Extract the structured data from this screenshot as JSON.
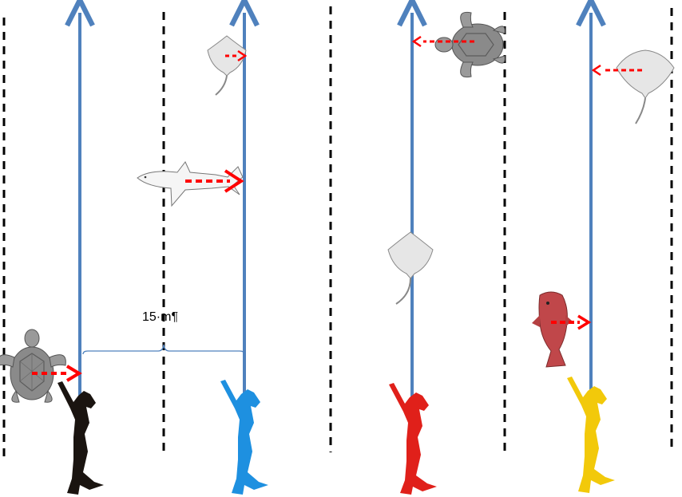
{
  "distance_label": "15·m¶",
  "colors": {
    "transect_line": "#4F81BD",
    "movement_arrow": "#FF0000",
    "boundary": "#000000",
    "diver_1": "#1a1410",
    "diver_2": "#1E90E0",
    "diver_3": "#E0201A",
    "diver_4": "#F2C90A"
  },
  "icons": [
    "turtle-icon",
    "ray-icon",
    "shark-icon",
    "grouper-icon",
    "diver-icon"
  ]
}
